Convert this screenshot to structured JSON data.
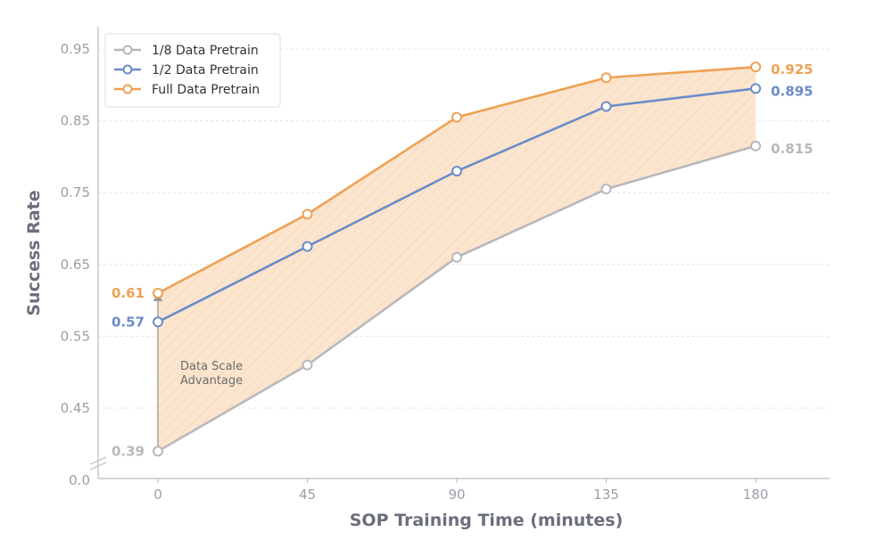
{
  "chart_data": {
    "type": "line",
    "xlabel": "SOP Training Time (minutes)",
    "ylabel": "Success Rate",
    "x": [
      0,
      45,
      90,
      135,
      180
    ],
    "x_tick_labels": [
      "0",
      "45",
      "90",
      "135",
      "180"
    ],
    "y_tick_labels": [
      "0.0",
      "0.45",
      "0.55",
      "0.65",
      "0.75",
      "0.85",
      "0.95"
    ],
    "y_axis_broken": true,
    "grid": true,
    "legend_position": "top-left",
    "series": [
      {
        "name": "1/8 Data Pretrain",
        "color": "#b8b8bc",
        "values": [
          0.39,
          0.51,
          0.66,
          0.755,
          0.815
        ],
        "start_label": "0.39",
        "end_label": "0.815"
      },
      {
        "name": "1/2 Data Pretrain",
        "color": "#6b8cc7",
        "values": [
          0.57,
          0.675,
          0.78,
          0.87,
          0.895
        ],
        "start_label": "0.57",
        "end_label": "0.895"
      },
      {
        "name": "Full Data Pretrain",
        "color": "#eea154",
        "values": [
          0.61,
          0.72,
          0.855,
          0.91,
          0.925
        ],
        "start_label": "0.61",
        "end_label": "0.925"
      }
    ],
    "shaded_region": {
      "between": [
        "1/8 Data Pretrain",
        "Full Data Pretrain"
      ],
      "color": "#fbe3cc"
    },
    "annotation": {
      "lines": [
        "Data Scale",
        "Advantage"
      ]
    }
  }
}
